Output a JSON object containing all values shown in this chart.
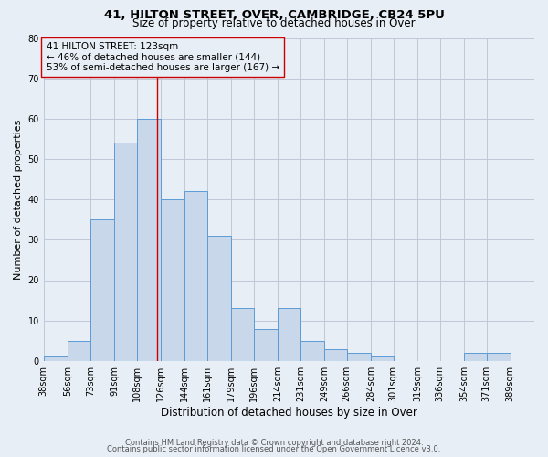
{
  "title1": "41, HILTON STREET, OVER, CAMBRIDGE, CB24 5PU",
  "title2": "Size of property relative to detached houses in Over",
  "xlabel": "Distribution of detached houses by size in Over",
  "ylabel": "Number of detached properties",
  "bin_labels": [
    "38sqm",
    "56sqm",
    "73sqm",
    "91sqm",
    "108sqm",
    "126sqm",
    "144sqm",
    "161sqm",
    "179sqm",
    "196sqm",
    "214sqm",
    "231sqm",
    "249sqm",
    "266sqm",
    "284sqm",
    "301sqm",
    "319sqm",
    "336sqm",
    "354sqm",
    "371sqm",
    "389sqm"
  ],
  "bin_edges": [
    38,
    56,
    73,
    91,
    108,
    126,
    144,
    161,
    179,
    196,
    214,
    231,
    249,
    266,
    284,
    301,
    319,
    336,
    354,
    371,
    389
  ],
  "bar_heights": [
    1,
    5,
    35,
    54,
    60,
    40,
    42,
    31,
    13,
    8,
    13,
    5,
    3,
    2,
    1,
    0,
    0,
    0,
    2,
    2,
    0
  ],
  "bar_color": "#c8d8ea",
  "bar_edge_color": "#5b9bd5",
  "property_value": 123,
  "vline_color": "#cc0000",
  "annotation_line1": "41 HILTON STREET: 123sqm",
  "annotation_line2": "← 46% of detached houses are smaller (144)",
  "annotation_line3": "53% of semi-detached houses are larger (167) →",
  "annotation_box_edge_color": "#cc0000",
  "ylim": [
    0,
    80
  ],
  "yticks": [
    0,
    10,
    20,
    30,
    40,
    50,
    60,
    70,
    80
  ],
  "grid_color": "#c0c8d8",
  "background_color": "#e8eef5",
  "footer1": "Contains HM Land Registry data © Crown copyright and database right 2024.",
  "footer2": "Contains public sector information licensed under the Open Government Licence v3.0.",
  "title1_fontsize": 9.5,
  "title2_fontsize": 8.5,
  "xlabel_fontsize": 8.5,
  "ylabel_fontsize": 8,
  "tick_fontsize": 7,
  "annotation_fontsize": 7.5,
  "footer_fontsize": 6
}
